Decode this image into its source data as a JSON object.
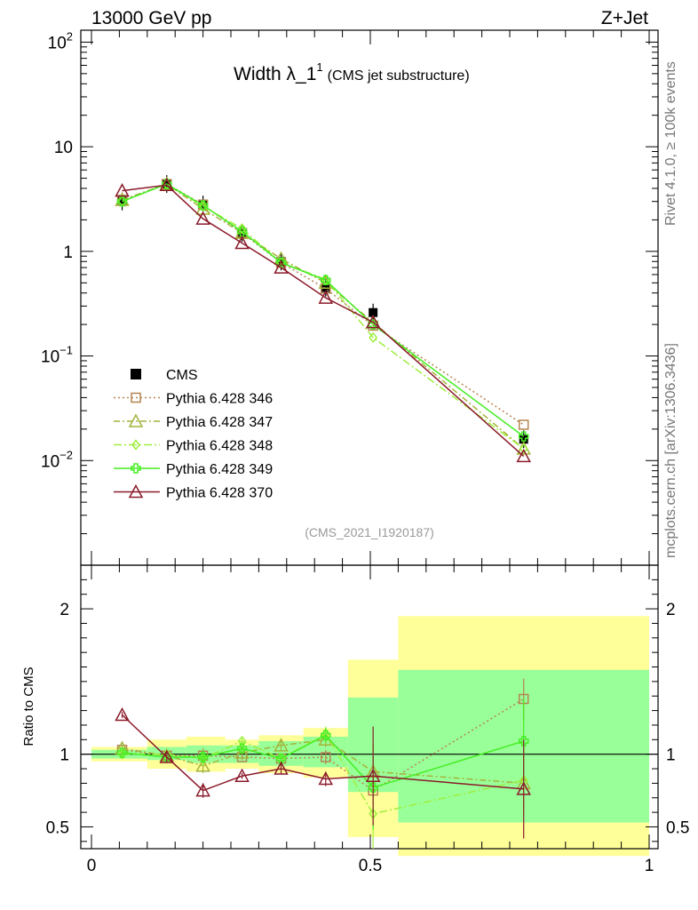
{
  "header": {
    "left": "13000 GeV pp",
    "right": "Z+Jet"
  },
  "plot_title": {
    "main": "Width λ_1",
    "sup": "1",
    "sub": "(CMS jet substructure)"
  },
  "side_labels": {
    "rivet": "Rivet 4.1.0, ≥ 100k events",
    "mcplots": "mcplots.cern.ch [arXiv:1306.3436]"
  },
  "analysis_id": "(CMS_2021_I1920187)",
  "chart_data": [
    {
      "type": "line",
      "panel": "main",
      "yscale": "log",
      "xlim": [
        0,
        1
      ],
      "ylim": [
        0.001,
        130
      ],
      "ytick_labels": [
        {
          "value": 100,
          "base": "10",
          "exp": "2"
        },
        {
          "value": 10,
          "base": "10",
          "exp": ""
        },
        {
          "value": 1,
          "base": "1",
          "exp": ""
        },
        {
          "value": 0.1,
          "base": "10",
          "exp": "−1"
        },
        {
          "value": 0.01,
          "base": "10",
          "exp": "−2"
        }
      ],
      "x": [
        0.055,
        0.135,
        0.2,
        0.27,
        0.34,
        0.42,
        0.505,
        0.775
      ],
      "series": [
        {
          "name": "CMS",
          "color": "#000000",
          "marker": "square-filled",
          "values": [
            3.0,
            4.4,
            2.8,
            1.5,
            0.8,
            0.45,
            0.26,
            0.016
          ]
        },
        {
          "name": "Pythia 6.428 346",
          "color": "#b58452",
          "marker": "square-open",
          "dash": "2,3",
          "values": [
            3.1,
            4.4,
            2.8,
            1.5,
            0.78,
            0.44,
            0.195,
            0.022
          ]
        },
        {
          "name": "Pythia 6.428 347",
          "color": "#a4b33a",
          "marker": "triangle-open",
          "dash": "7,3,2,3",
          "values": [
            3.1,
            4.4,
            2.55,
            1.5,
            0.85,
            0.5,
            0.21,
            0.013
          ]
        },
        {
          "name": "Pythia 6.428 348",
          "color": "#9fef3f",
          "marker": "diamond-open",
          "dash": "9,3,2,3",
          "values": [
            3.0,
            4.4,
            2.7,
            1.65,
            0.78,
            0.54,
            0.15,
            0.013
          ]
        },
        {
          "name": "Pythia 6.428 349",
          "color": "#44ee22",
          "marker": "cross",
          "dash": "",
          "values": [
            3.0,
            4.4,
            2.75,
            1.55,
            0.78,
            0.53,
            0.2,
            0.017
          ]
        },
        {
          "name": "Pythia 6.428 370",
          "color": "#8b1a2a",
          "marker": "triangle-open",
          "dash": "",
          "values": [
            3.8,
            4.3,
            2.05,
            1.2,
            0.7,
            0.36,
            0.21,
            0.011
          ]
        }
      ]
    },
    {
      "type": "line",
      "panel": "ratio",
      "ylabel": "Ratio to CMS",
      "xlim": [
        0,
        1
      ],
      "ylim": [
        0.35,
        2.3
      ],
      "yticks": [
        0.5,
        1,
        2
      ],
      "ytick_labels": [
        "0.5",
        "1",
        "2"
      ],
      "xticks": [
        0,
        0.5,
        1
      ],
      "xtick_labels": [
        "0",
        "0.5",
        "1"
      ],
      "bins": [
        [
          0,
          0.1
        ],
        [
          0.1,
          0.17
        ],
        [
          0.17,
          0.24
        ],
        [
          0.24,
          0.3
        ],
        [
          0.3,
          0.38
        ],
        [
          0.38,
          0.46
        ],
        [
          0.46,
          0.55
        ],
        [
          0.55,
          1.0
        ]
      ],
      "band_inner": [
        [
          0.97,
          1.03
        ],
        [
          0.96,
          1.05
        ],
        [
          0.94,
          1.06
        ],
        [
          0.94,
          1.06
        ],
        [
          0.92,
          1.09
        ],
        [
          0.91,
          1.12
        ],
        [
          0.74,
          1.39
        ],
        [
          0.53,
          1.58
        ]
      ],
      "band_outer": [
        [
          0.95,
          1.05
        ],
        [
          0.9,
          1.1
        ],
        [
          0.88,
          1.12
        ],
        [
          0.9,
          1.1
        ],
        [
          0.87,
          1.13
        ],
        [
          0.84,
          1.18
        ],
        [
          0.43,
          1.65
        ],
        [
          0.3,
          1.95
        ]
      ],
      "x": [
        0.055,
        0.135,
        0.2,
        0.27,
        0.34,
        0.42,
        0.505,
        0.775
      ],
      "series": [
        {
          "name": "Pythia 6.428 346",
          "color": "#b58452",
          "marker": "square-open",
          "dash": "2,3",
          "values": [
            1.03,
            0.99,
            0.99,
            0.98,
            0.97,
            0.98,
            0.75,
            1.38
          ]
        },
        {
          "name": "Pythia 6.428 347",
          "color": "#a4b33a",
          "marker": "triangle-open",
          "dash": "7,3,2,3",
          "values": [
            1.04,
            0.99,
            0.92,
            1.01,
            1.06,
            1.1,
            0.88,
            0.8
          ]
        },
        {
          "name": "Pythia 6.428 348",
          "color": "#9fef3f",
          "marker": "diamond-open",
          "dash": "9,3,2,3",
          "values": [
            1.0,
            1.0,
            0.97,
            1.09,
            0.97,
            1.14,
            0.59,
            0.82
          ]
        },
        {
          "name": "Pythia 6.428 349",
          "color": "#44ee22",
          "marker": "cross",
          "dash": "",
          "values": [
            1.01,
            0.98,
            0.98,
            1.04,
            0.97,
            1.13,
            0.77,
            1.09
          ]
        },
        {
          "name": "Pythia 6.428 370",
          "color": "#8b1a2a",
          "marker": "triangle-open",
          "dash": "",
          "values": [
            1.27,
            0.98,
            0.75,
            0.85,
            0.9,
            0.83,
            0.85,
            0.76
          ]
        }
      ]
    }
  ]
}
